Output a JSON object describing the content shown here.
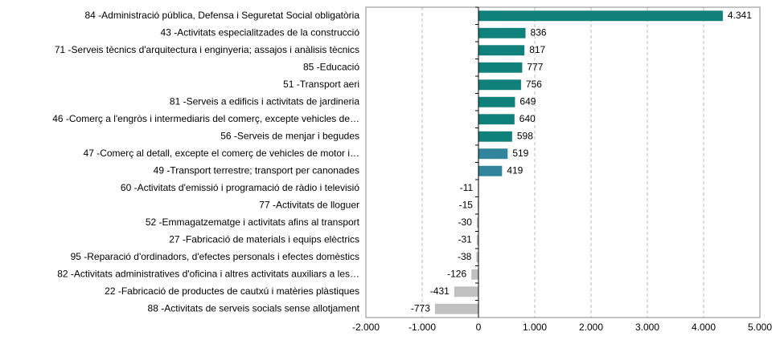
{
  "chart_data": {
    "type": "bar",
    "orientation": "horizontal",
    "categories": [
      "84 -Administració pública, Defensa i Seguretat Social obligatòria",
      "43 -Activitats especialitzades de la construcció",
      "71 -Serveis tècnics d'arquitectura i enginyeria; assajos i anàlisis tècnics",
      "85 -Educació",
      "51 -Transport aeri",
      "81 -Serveis a edificis i activitats de jardineria",
      "46 -Comerç a l'engròs i intermediaris del comerç, excepte vehicles de…",
      "56 -Serveis de menjar i begudes",
      "47 -Comerç al detall, excepte el comerç de vehicles de motor i…",
      "49 -Transport terrestre; transport per canonades",
      "60 -Activitats d'emissió i programació de ràdio i televisió",
      "77 -Activitats de lloguer",
      "52 -Emmagatzematge i activitats afins al transport",
      "27 -Fabricació de materials i equips elèctrics",
      "95 -Reparació d'ordinadors, d'efectes personals i efectes domèstics",
      "82 -Activitats administratives d'oficina i altres activitats auxiliars a les…",
      "22 -Fabricació de productes de cautxú i matèries plàstiques",
      "88 -Activitats de serveis socials sense allotjament"
    ],
    "values": [
      4341,
      836,
      817,
      777,
      756,
      649,
      640,
      598,
      519,
      419,
      -11,
      -15,
      -30,
      -31,
      -38,
      -126,
      -431,
      -773
    ],
    "value_labels": [
      "4.341",
      "836",
      "817",
      "777",
      "756",
      "649",
      "640",
      "598",
      "519",
      "419",
      "-11",
      "-15",
      "-30",
      "-31",
      "-38",
      "-126",
      "-431",
      "-773"
    ],
    "colors": [
      "#10807b",
      "#10807b",
      "#10807b",
      "#10807b",
      "#10807b",
      "#10807b",
      "#10807b",
      "#10807b",
      "#31849b",
      "#31849b",
      "#c0c0c0",
      "#c0c0c0",
      "#c0c0c0",
      "#c0c0c0",
      "#c0c0c0",
      "#c0c0c0",
      "#c0c0c0",
      "#c0c0c0"
    ],
    "xlim": [
      -2000,
      5000
    ],
    "xticks": [
      {
        "value": -2000,
        "label": "-2.000"
      },
      {
        "value": -1000,
        "label": "-1.000"
      },
      0,
      {
        "value": 1000,
        "label": "1.000"
      },
      {
        "value": 2000,
        "label": "2.000"
      },
      {
        "value": 3000,
        "label": "3.000"
      },
      {
        "value": 4000,
        "label": "4.000"
      },
      {
        "value": 5000,
        "label": "5.000"
      }
    ],
    "grid": true
  }
}
